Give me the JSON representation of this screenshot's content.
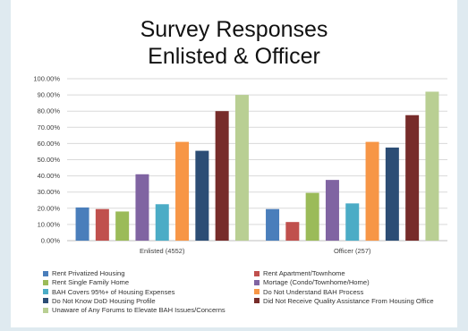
{
  "chart_data": {
    "type": "bar",
    "title": "Survey Responses",
    "subtitle": "Enlisted & Officer",
    "categories": [
      "Enlisted (4552)",
      "Officer (257)"
    ],
    "ylim": [
      0,
      100
    ],
    "yticks": [
      "0.00%",
      "10.00%",
      "20.00%",
      "30.00%",
      "40.00%",
      "50.00%",
      "60.00%",
      "70.00%",
      "80.00%",
      "90.00%",
      "100.00%"
    ],
    "grid": true,
    "legend_position": "bottom",
    "series": [
      {
        "name": "Rent Privatized Housing",
        "color": "#4a7ebb",
        "values": [
          20.5,
          19.5
        ]
      },
      {
        "name": "Rent Apartment/Townhome",
        "color": "#c0504d",
        "values": [
          19.5,
          11.5
        ]
      },
      {
        "name": "Rent Single Family Home",
        "color": "#9bbb59",
        "values": [
          18.0,
          29.5
        ]
      },
      {
        "name": "Mortage (Condo/Townhome/Home)",
        "color": "#8064a2",
        "values": [
          41.0,
          37.5
        ]
      },
      {
        "name": "BAH Covers 95%+ of Housing Expenses",
        "color": "#4bacc6",
        "values": [
          22.5,
          23.0
        ]
      },
      {
        "name": "Do Not Understand BAH Process",
        "color": "#f79646",
        "values": [
          61.0,
          61.0
        ]
      },
      {
        "name": "Do Not Know DoD Housing Profile",
        "color": "#2c4d75",
        "values": [
          55.5,
          57.5
        ]
      },
      {
        "name": "Did Not Receive Quality Assistance From Housing Office",
        "color": "#772c2a",
        "values": [
          80.0,
          77.5
        ]
      },
      {
        "name": "Unaware of Any Forums to Elevate BAH Issues/Concerns",
        "color": "#b9cf93",
        "values": [
          90.0,
          92.0
        ]
      }
    ]
  }
}
